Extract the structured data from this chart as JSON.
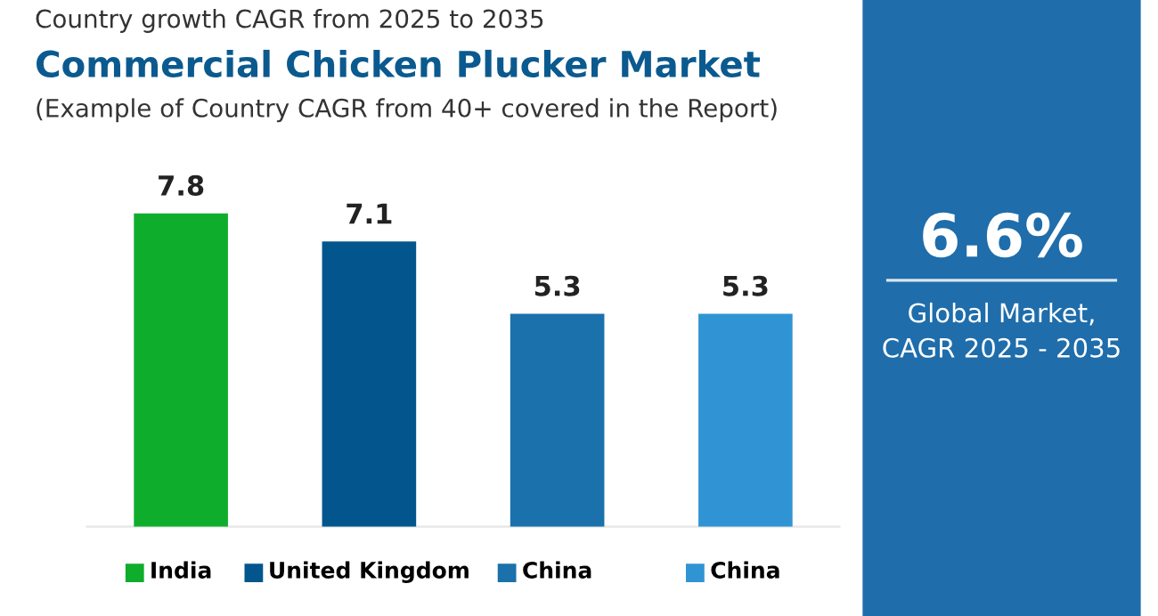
{
  "chart_data": [
    {
      "type": "bar",
      "subtitle": "Country growth CAGR from 2025 to 2035",
      "title": "Commercial Chicken Plucker Market",
      "annotations": [
        "(Example of Country CAGR from 40+ covered in the Report)"
      ],
      "categories": [
        "India",
        "United Kingdom",
        "China",
        "China"
      ],
      "values": [
        7.8,
        7.1,
        5.3,
        5.3
      ],
      "colors": [
        "#0fad2c",
        "#03568d",
        "#1a71ab",
        "#3094d4"
      ],
      "data_labels": true
    },
    {
      "type": "other",
      "title": "6.6%",
      "annotations": [
        "Global Market,\nCAGR 2025 - 2035"
      ]
    }
  ]
}
